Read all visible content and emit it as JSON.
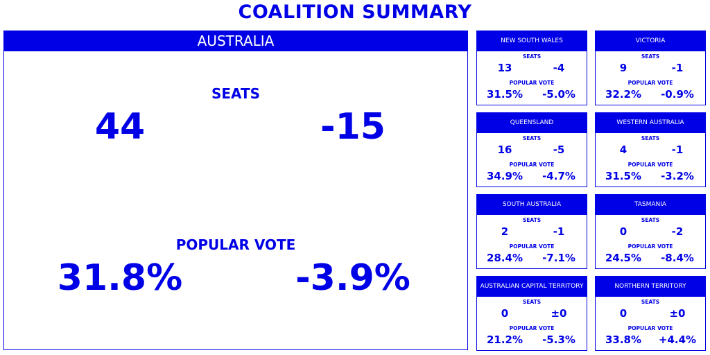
{
  "title": "COALITION SUMMARY",
  "national": {
    "name": "AUSTRALIA",
    "seats_label": "SEATS",
    "seats": "44",
    "seats_change": "-15",
    "vote_label": "POPULAR VOTE",
    "vote": "31.8%",
    "vote_change": "-3.9%"
  },
  "states": [
    {
      "name": "NEW SOUTH WALES",
      "seats_label": "SEATS",
      "seats": "13",
      "seats_change": "-4",
      "vote_label": "POPULAR VOTE",
      "vote": "31.5%",
      "vote_change": "-5.0%"
    },
    {
      "name": "VICTORIA",
      "seats_label": "SEATS",
      "seats": "9",
      "seats_change": "-1",
      "vote_label": "POPULAR VOTE",
      "vote": "32.2%",
      "vote_change": "-0.9%"
    },
    {
      "name": "QUEENSLAND",
      "seats_label": "SEATS",
      "seats": "16",
      "seats_change": "-5",
      "vote_label": "POPULAR VOTE",
      "vote": "34.9%",
      "vote_change": "-4.7%"
    },
    {
      "name": "WESTERN AUSTRALIA",
      "seats_label": "SEATS",
      "seats": "4",
      "seats_change": "-1",
      "vote_label": "POPULAR VOTE",
      "vote": "31.5%",
      "vote_change": "-3.2%"
    },
    {
      "name": "SOUTH AUSTRALIA",
      "seats_label": "SEATS",
      "seats": "2",
      "seats_change": "-1",
      "vote_label": "POPULAR VOTE",
      "vote": "28.4%",
      "vote_change": "-7.1%"
    },
    {
      "name": "TASMANIA",
      "seats_label": "SEATS",
      "seats": "0",
      "seats_change": "-2",
      "vote_label": "POPULAR VOTE",
      "vote": "24.5%",
      "vote_change": "-8.4%"
    },
    {
      "name": "AUSTRALIAN CAPITAL TERRITORY",
      "seats_label": "SEATS",
      "seats": "0",
      "seats_change": "±0",
      "vote_label": "POPULAR VOTE",
      "vote": "21.2%",
      "vote_change": "-5.3%"
    },
    {
      "name": "NORTHERN TERRITORY",
      "seats_label": "SEATS",
      "seats": "0",
      "seats_change": "±0",
      "vote_label": "POPULAR VOTE",
      "vote": "33.8%",
      "vote_change": "+4.4%"
    }
  ],
  "colors": {
    "accent": "#0000e6",
    "background": "#ffffff",
    "header_text": "#ffffff"
  }
}
